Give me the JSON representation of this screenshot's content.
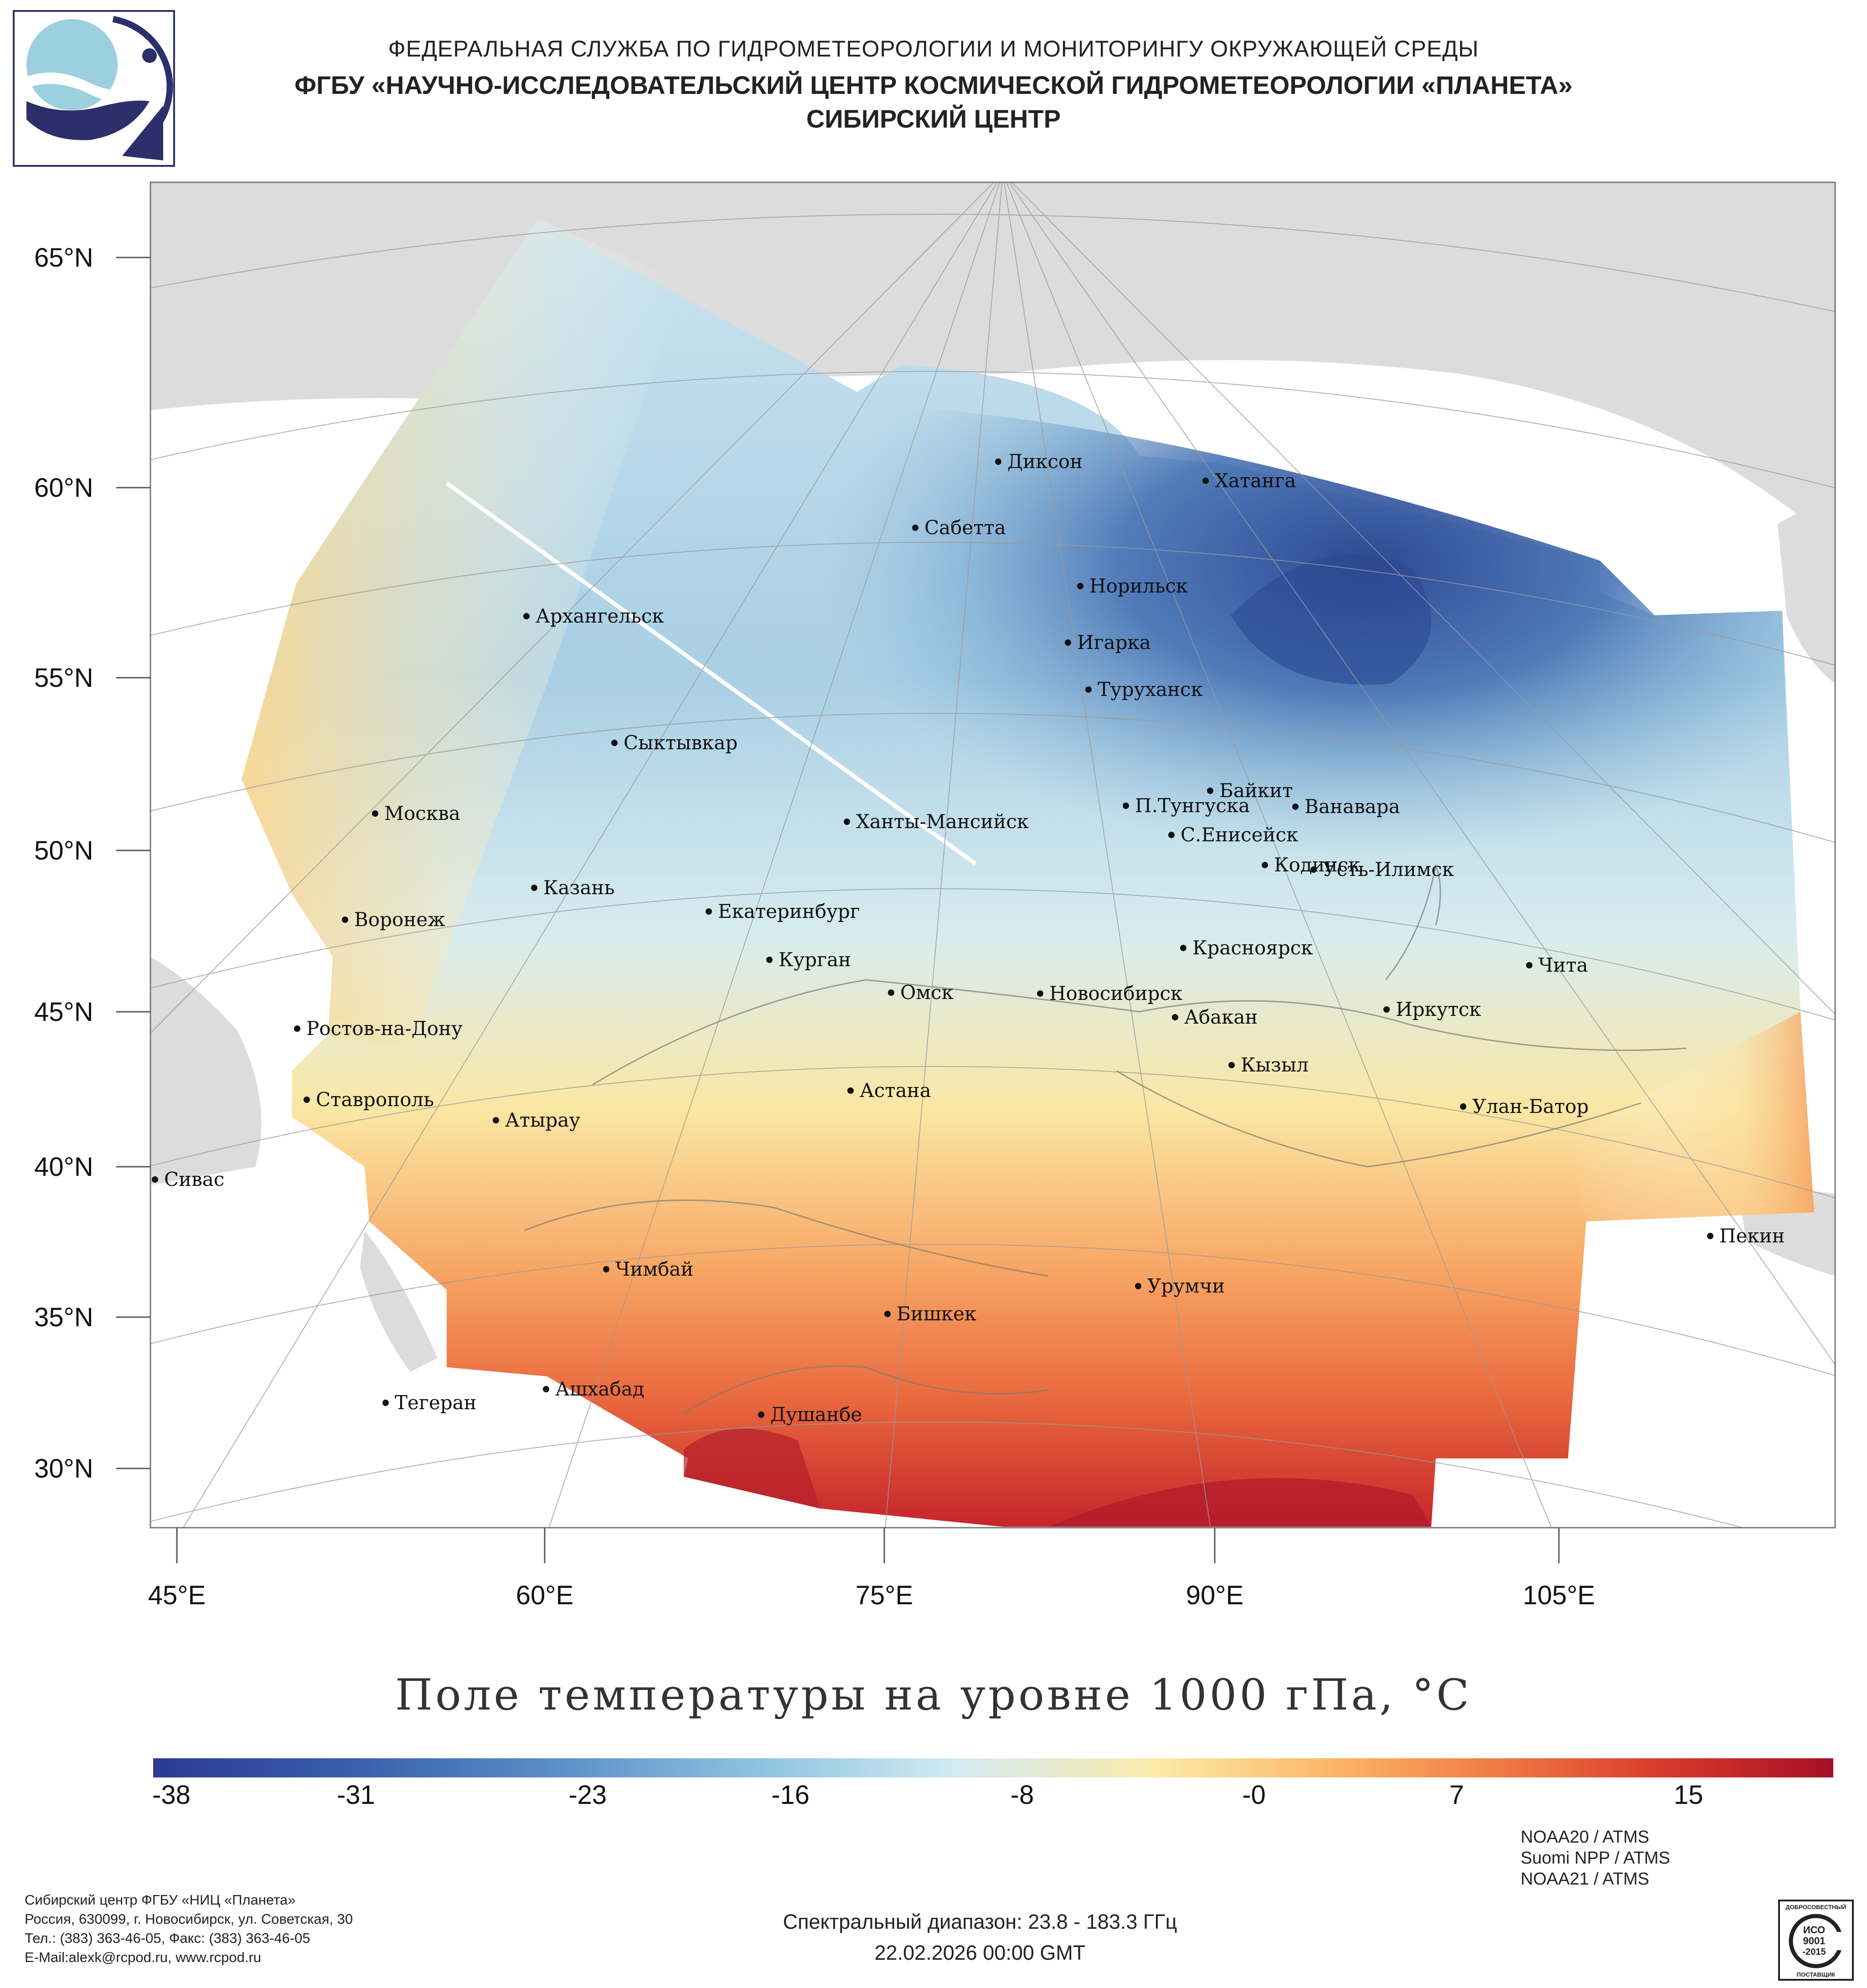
{
  "header": {
    "line1": "ФЕДЕРАЛЬНАЯ СЛУЖБА ПО ГИДРОМЕТЕОРОЛОГИИ И МОНИТОРИНГУ ОКРУЖАЮЩЕЙ СРЕДЫ",
    "line2": "ФГБУ «НАУЧНО-ИССЛЕДОВАТЕЛЬСКИЙ ЦЕНТР КОСМИЧЕСКОЙ ГИДРОМЕТЕОРОЛОГИИ «ПЛАНЕТА»",
    "line3": "СИБИРСКИЙ ЦЕНТР"
  },
  "map": {
    "lat_labels": [
      "65°N",
      "60°N",
      "55°N",
      "50°N",
      "45°N",
      "40°N",
      "35°N",
      "30°N"
    ],
    "lon_labels": [
      "45°E",
      "60°E",
      "75°E",
      "90°E",
      "105°E"
    ],
    "cities": [
      {
        "name": "Диксон"
      },
      {
        "name": "Хатанга"
      },
      {
        "name": "Сабетта"
      },
      {
        "name": "Норильск"
      },
      {
        "name": "Архангельск"
      },
      {
        "name": "Игарка"
      },
      {
        "name": "Туруханск"
      },
      {
        "name": "Сыктывкар"
      },
      {
        "name": "Байкит"
      },
      {
        "name": "П.Тунгуска"
      },
      {
        "name": "Ванавара"
      },
      {
        "name": "Москва"
      },
      {
        "name": "Ханты-Мансийск"
      },
      {
        "name": "С.Енисейск"
      },
      {
        "name": "Кодинск"
      },
      {
        "name": "Усть-Илимск"
      },
      {
        "name": "Казань"
      },
      {
        "name": "Екатеринбург"
      },
      {
        "name": "Воронеж"
      },
      {
        "name": "Красноярск"
      },
      {
        "name": "Курган"
      },
      {
        "name": "Чита"
      },
      {
        "name": "Омск"
      },
      {
        "name": "Новосибирск"
      },
      {
        "name": "Ростов-на-Дону"
      },
      {
        "name": "Иркутск"
      },
      {
        "name": "Абакан"
      },
      {
        "name": "Кызыл"
      },
      {
        "name": "Астана"
      },
      {
        "name": "Ставрополь"
      },
      {
        "name": "Улан-Батор"
      },
      {
        "name": "Атырау"
      },
      {
        "name": "Сивас"
      },
      {
        "name": "Пекин"
      },
      {
        "name": "Чимбай"
      },
      {
        "name": "Урумчи"
      },
      {
        "name": "Бишкек"
      },
      {
        "name": "Ашхабад"
      },
      {
        "name": "Тегеран"
      },
      {
        "name": "Душанбе"
      }
    ]
  },
  "title": "Поле температуры на уровне 1000 гПа, °C",
  "colorbar": {
    "min": -38,
    "max": 20,
    "labels": [
      "-38",
      "-31",
      "-23",
      "-16",
      "-8",
      "-0",
      "7",
      "15"
    ],
    "label_values": [
      -38,
      -31,
      -23,
      -16,
      -8,
      0,
      7,
      15
    ]
  },
  "footer": {
    "org_line1": "Сибирский центр ФГБУ «НИЦ «Планета»",
    "org_line2": "Россия, 630099, г. Новосибирск, ул. Советская, 30",
    "org_line3": "Тел.: (383) 363-46-05, Факс: (383) 363-46-05",
    "org_line4": "E-Mail:alexk@rcpod.ru, www.rcpod.ru",
    "spectral": "Спектральный диапазон: 23.8 - 183.3 ГГц",
    "datetime": "22.02.2026 00:00 GMT",
    "sensors": [
      "NOAA20 / ATMS",
      "Suomi NPP / ATMS",
      "NOAA21 / ATMS"
    ],
    "iso_top": "ДОБРОСОВЕСТНЫЙ",
    "iso_main1": "ИСО",
    "iso_main2": "9001",
    "iso_main3": "-2015",
    "iso_bottom": "ПОСТАВЩИК"
  }
}
